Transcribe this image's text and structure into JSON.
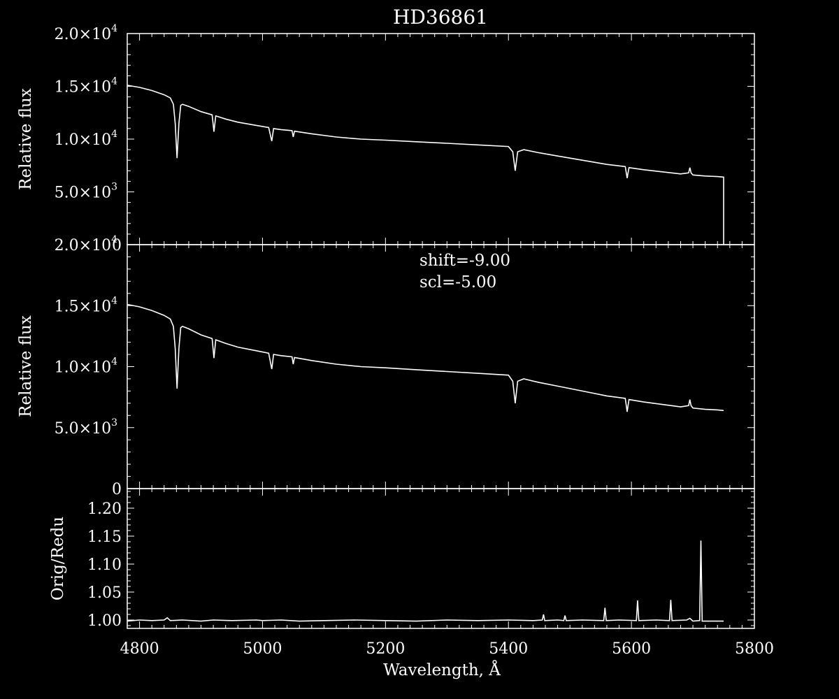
{
  "chart_data": {
    "type": "line",
    "title": "HD36861",
    "xlabel": "Wavelength, Å",
    "xlim": [
      4780,
      5800
    ],
    "x_ticks": [
      "4800",
      "5000",
      "5200",
      "5400",
      "5600",
      "5800"
    ],
    "grid": false,
    "annotation": {
      "line1": "shift=-9.00",
      "line2": "scl=-5.00"
    },
    "panels": [
      {
        "ylabel": "Relative flux",
        "ylim": [
          0,
          20000
        ],
        "y_ticks": [
          {
            "base": "0",
            "exp": ""
          },
          {
            "base": "5.0×10",
            "exp": "3"
          },
          {
            "base": "1.0×10",
            "exp": "4"
          },
          {
            "base": "1.5×10",
            "exp": "4"
          },
          {
            "base": "2.0×10",
            "exp": "4"
          }
        ],
        "series": [
          {
            "x": [
              4780,
              4800,
              4820,
              4840,
              4850,
              4855,
              4858,
              4861,
              4864,
              4867,
              4870,
              4880,
              4900,
              4918,
              4921,
              4924,
              4940,
              4960,
              4990,
              5010,
              5015,
              5018,
              5030,
              5048,
              5050,
              5052,
              5080,
              5120,
              5160,
              5200,
              5250,
              5300,
              5350,
              5400,
              5407,
              5411,
              5415,
              5425,
              5450,
              5480,
              5500,
              5530,
              5560,
              5590,
              5593,
              5596,
              5620,
              5650,
              5680,
              5693,
              5695,
              5697,
              5700,
              5720,
              5740,
              5750,
              5750
            ],
            "y": [
              15100,
              14900,
              14600,
              14200,
              13900,
              13300,
              11500,
              8200,
              11500,
              13200,
              13300,
              13100,
              12600,
              12300,
              10700,
              12200,
              11900,
              11600,
              11300,
              11100,
              9800,
              11000,
              10900,
              10800,
              10200,
              10750,
              10500,
              10200,
              10000,
              9900,
              9750,
              9600,
              9450,
              9300,
              8800,
              7000,
              8800,
              9000,
              8700,
              8400,
              8200,
              7900,
              7600,
              7400,
              6300,
              7300,
              7100,
              6900,
              6700,
              6800,
              7300,
              6800,
              6600,
              6500,
              6450,
              6400,
              0
            ]
          }
        ]
      },
      {
        "ylabel": "Relative flux",
        "ylim": [
          0,
          20000
        ],
        "y_ticks": [
          {
            "base": "0",
            "exp": ""
          },
          {
            "base": "5.0×10",
            "exp": "3"
          },
          {
            "base": "1.0×10",
            "exp": "4"
          },
          {
            "base": "1.5×10",
            "exp": "4"
          },
          {
            "base": "2.0×10",
            "exp": "4"
          }
        ],
        "series": [
          {
            "x": [
              4780,
              4800,
              4820,
              4840,
              4850,
              4855,
              4858,
              4861,
              4864,
              4867,
              4870,
              4880,
              4900,
              4918,
              4921,
              4924,
              4940,
              4960,
              4990,
              5010,
              5015,
              5018,
              5030,
              5048,
              5050,
              5052,
              5080,
              5120,
              5160,
              5200,
              5250,
              5300,
              5350,
              5400,
              5407,
              5411,
              5415,
              5425,
              5450,
              5480,
              5500,
              5530,
              5560,
              5590,
              5593,
              5596,
              5620,
              5650,
              5680,
              5693,
              5695,
              5697,
              5700,
              5720,
              5740,
              5750
            ],
            "y": [
              15100,
              14900,
              14600,
              14200,
              13900,
              13300,
              11500,
              8200,
              11500,
              13200,
              13300,
              13100,
              12600,
              12300,
              10700,
              12200,
              11900,
              11600,
              11300,
              11100,
              9800,
              11000,
              10900,
              10800,
              10200,
              10750,
              10500,
              10200,
              10000,
              9900,
              9750,
              9600,
              9450,
              9300,
              8800,
              7000,
              8800,
              9000,
              8700,
              8400,
              8200,
              7900,
              7600,
              7400,
              6300,
              7300,
              7100,
              6900,
              6700,
              6800,
              7300,
              6800,
              6600,
              6500,
              6450,
              6400
            ]
          }
        ]
      },
      {
        "ylabel": "Orig/Redu",
        "ylim": [
          0.985,
          1.235
        ],
        "y_ticks": [
          {
            "base": "1.00",
            "exp": ""
          },
          {
            "base": "1.05",
            "exp": ""
          },
          {
            "base": "1.10",
            "exp": ""
          },
          {
            "base": "1.15",
            "exp": ""
          },
          {
            "base": "1.20",
            "exp": ""
          }
        ],
        "series": [
          {
            "x": [
              4780,
              4800,
              4820,
              4840,
              4845,
              4850,
              4870,
              4900,
              4920,
              4950,
              4990,
              5000,
              5030,
              5060,
              5100,
              5150,
              5200,
              5250,
              5300,
              5350,
              5400,
              5440,
              5455,
              5457,
              5459,
              5480,
              5490,
              5492,
              5494,
              5520,
              5555,
              5557,
              5559,
              5580,
              5608,
              5610,
              5612,
              5640,
              5662,
              5664,
              5666,
              5690,
              5695,
              5700,
              5711,
              5713,
              5715,
              5730,
              5750
            ],
            "y": [
              0.998,
              1.0,
              0.999,
              1.0,
              1.004,
              0.999,
              1.0,
              0.998,
              1.0,
              0.999,
              1.0,
              0.999,
              1.0,
              0.998,
              0.999,
              1.0,
              0.999,
              0.998,
              1.0,
              0.999,
              1.0,
              0.999,
              1.0,
              1.01,
              0.999,
              1.0,
              0.999,
              1.008,
              0.999,
              1.0,
              0.999,
              1.022,
              0.999,
              1.0,
              0.999,
              1.035,
              0.999,
              1.0,
              0.999,
              1.036,
              0.999,
              1.0,
              1.003,
              0.998,
              0.999,
              1.142,
              0.998,
              0.998,
              0.998
            ]
          }
        ]
      }
    ]
  }
}
